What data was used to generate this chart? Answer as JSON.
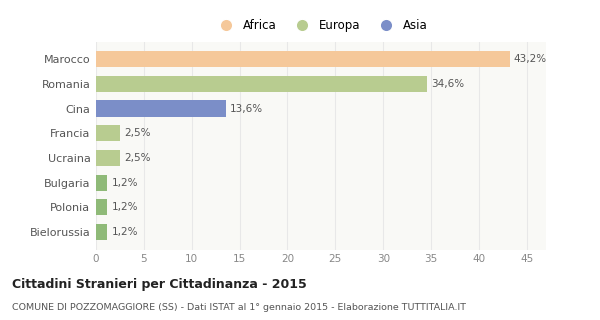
{
  "categories": [
    "Marocco",
    "Romania",
    "Cina",
    "Francia",
    "Ucraina",
    "Bulgaria",
    "Polonia",
    "Bielorussia"
  ],
  "values": [
    43.2,
    34.6,
    13.6,
    2.5,
    2.5,
    1.2,
    1.2,
    1.2
  ],
  "labels": [
    "43,2%",
    "34,6%",
    "13,6%",
    "2,5%",
    "2,5%",
    "1,2%",
    "1,2%",
    "1,2%"
  ],
  "colors": [
    "#f5c89a",
    "#b8cc90",
    "#7b8ec8",
    "#b8cc90",
    "#b8cc90",
    "#8fba78",
    "#8fba78",
    "#8fba78"
  ],
  "legend_items": [
    {
      "label": "Africa",
      "color": "#f5c89a"
    },
    {
      "label": "Europa",
      "color": "#b8cc90"
    },
    {
      "label": "Asia",
      "color": "#7b8ec8"
    }
  ],
  "xlim": [
    0,
    47
  ],
  "xticks": [
    0,
    5,
    10,
    15,
    20,
    25,
    30,
    35,
    40,
    45
  ],
  "title": "Cittadini Stranieri per Cittadinanza - 2015",
  "subtitle": "COMUNE DI POZZOMAGGIORE (SS) - Dati ISTAT al 1° gennaio 2015 - Elaborazione TUTTITALIA.IT",
  "background_color": "#ffffff",
  "plot_bg_color": "#f9f9f6",
  "grid_color": "#e8e8e8",
  "bar_height": 0.65
}
